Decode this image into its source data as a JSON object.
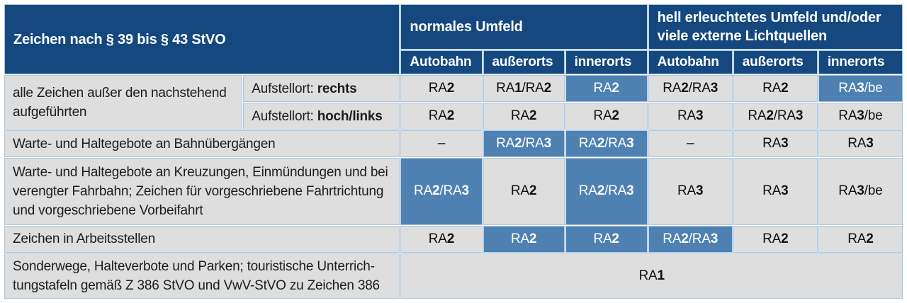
{
  "table": {
    "corner_header": "Zeichen nach § 39 bis § 43 StVO",
    "group_headers": [
      "normales Umfeld",
      "hell erleuchtetes Umfeld und/oder\nviele externe Lichtquellen"
    ],
    "column_headers": [
      "Autobahn",
      "außerorts",
      "innerorts",
      "Autobahn",
      "außerorts",
      "innerorts"
    ],
    "rows": [
      {
        "label": {
          "text": "alle Zeichen außer den nachstehend\naufgeführten",
          "rowspan": 2
        },
        "sublabel": {
          "prefix": "Aufstellort: ",
          "bold": "rechts"
        },
        "data": [
          {
            "text": "RA2",
            "highlight": false
          },
          {
            "text": "RA1/RA2",
            "highlight": false
          },
          {
            "text": "RA2",
            "highlight": true
          },
          {
            "text": "RA2/RA3",
            "highlight": false
          },
          {
            "text": "RA2",
            "highlight": false
          },
          {
            "text": "RA3/be",
            "highlight": true
          }
        ]
      },
      {
        "sublabel": {
          "prefix": "Aufstellort: ",
          "bold": "hoch/links"
        },
        "data": [
          {
            "text": "RA2",
            "highlight": false
          },
          {
            "text": "RA2",
            "highlight": false
          },
          {
            "text": "RA2",
            "highlight": false
          },
          {
            "text": "RA3",
            "highlight": false
          },
          {
            "text": "RA2/RA3",
            "highlight": false
          },
          {
            "text": "RA3/be",
            "highlight": false
          }
        ]
      },
      {
        "label": {
          "text": "Warte- und Haltegebote an Bahnübergängen",
          "colspan": 2
        },
        "data": [
          {
            "text": "–",
            "highlight": false
          },
          {
            "text": "RA2/RA3",
            "highlight": true
          },
          {
            "text": "RA2/RA3",
            "highlight": true
          },
          {
            "text": "–",
            "highlight": false
          },
          {
            "text": "RA3",
            "highlight": false
          },
          {
            "text": "RA3",
            "highlight": false
          }
        ]
      },
      {
        "label": {
          "text": "Warte- und Haltegebote an Kreuzungen, Einmündungen und bei\nverengter Fahrbahn; Zeichen für vorgeschriebene Fahrtrichtung\nund vorgeschriebene Vorbeifahrt",
          "colspan": 2
        },
        "data": [
          {
            "text": "RA2/RA3",
            "highlight": true
          },
          {
            "text": "RA2",
            "highlight": false
          },
          {
            "text": "RA2/RA3",
            "highlight": true
          },
          {
            "text": "RA3",
            "highlight": false
          },
          {
            "text": "RA3",
            "highlight": false
          },
          {
            "text": "RA3/be",
            "highlight": false
          }
        ]
      },
      {
        "label": {
          "text": "Zeichen in Arbeitsstellen",
          "colspan": 2
        },
        "data": [
          {
            "text": "RA2",
            "highlight": false
          },
          {
            "text": "RA2",
            "highlight": true
          },
          {
            "text": "RA2",
            "highlight": true
          },
          {
            "text": "RA2/RA3",
            "highlight": true
          },
          {
            "text": "RA2",
            "highlight": false
          },
          {
            "text": "RA2",
            "highlight": false
          }
        ]
      },
      {
        "label": {
          "text": "Sonderwege, Halteverbote und Parken; touristische Unterrich-\ntungstafeln gemäß Z 386 StVO und VwV-StVO zu Zeichen 386",
          "colspan": 2
        },
        "data": [
          {
            "text": "RA1",
            "highlight": false,
            "colspan": 6
          }
        ]
      }
    ]
  },
  "colors": {
    "header_bg": "#14487e",
    "header_text": "#ffffff",
    "highlight_bg": "#4e81b2",
    "row_bg": "#dedede",
    "grid_line": "#a9c6e1",
    "body_text": "#1c1c1a",
    "page_bg": "#ffffff"
  }
}
